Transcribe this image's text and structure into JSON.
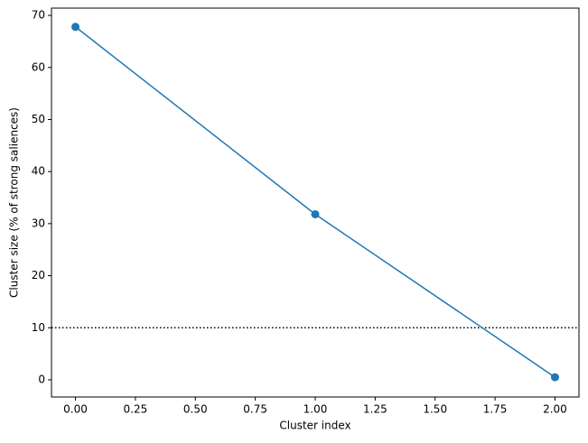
{
  "chart_data": {
    "type": "line",
    "x_label": "Cluster index",
    "y_label": "Cluster size (% of strong saliences)",
    "x": [
      0,
      1,
      2
    ],
    "series": [
      {
        "color": "#1f77b4",
        "values": [
          67.8,
          31.8,
          0.5
        ]
      }
    ],
    "reference_line": {
      "value": 10,
      "style": "dotted",
      "color": "#000000"
    },
    "xlim": [
      -0.1,
      2.1
    ],
    "ylim": [
      -3.3,
      71.4
    ],
    "xticks": [
      {
        "value": 0,
        "label": "0.00"
      },
      {
        "value": 0.25,
        "label": "0.25"
      },
      {
        "value": 0.5,
        "label": "0.50"
      },
      {
        "value": 0.75,
        "label": "0.75"
      },
      {
        "value": 1,
        "label": "1.00"
      },
      {
        "value": 1.25,
        "label": "1.25"
      },
      {
        "value": 1.5,
        "label": "1.50"
      },
      {
        "value": 1.75,
        "label": "1.75"
      },
      {
        "value": 2,
        "label": "2.00"
      }
    ],
    "yticks": [
      0,
      10,
      20,
      30,
      40,
      50,
      60,
      70
    ],
    "grid": false
  }
}
